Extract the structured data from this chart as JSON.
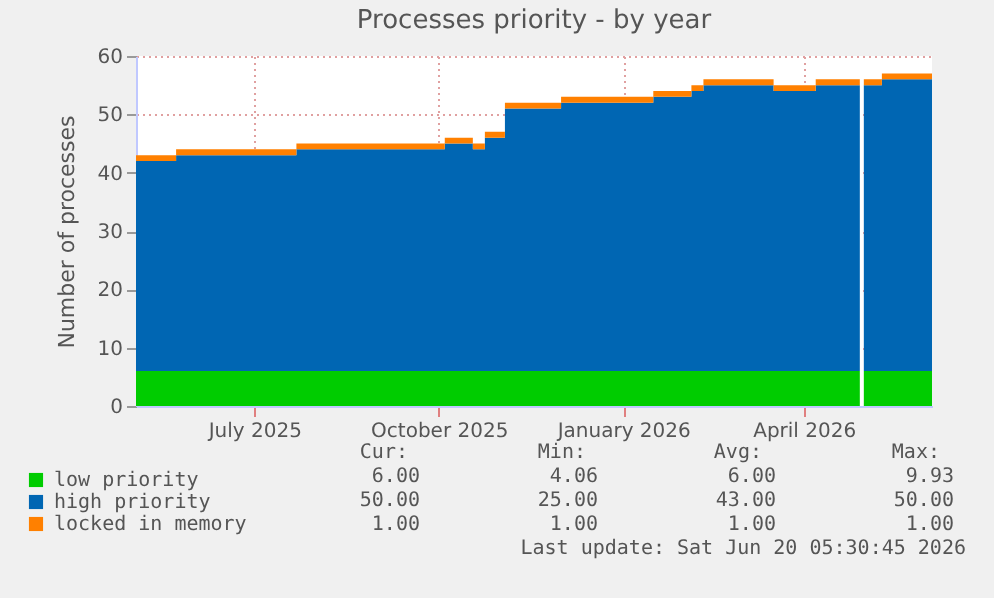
{
  "chart_data": {
    "type": "area",
    "title": "Processes priority - by year",
    "ylabel": "Number of processes",
    "stacked": true,
    "grid": true,
    "legend": "bottom",
    "x": [
      "2025-05-03",
      "2025-05-23",
      "2025-07-22",
      "2025-10-04",
      "2025-10-18",
      "2025-10-24",
      "2025-11-03",
      "2025-12-01",
      "2026-01-16",
      "2026-02-04",
      "2026-02-10",
      "2026-03-17",
      "2026-04-07",
      "2026-04-29",
      "2026-04-30",
      "2026-05-01",
      "2026-05-10",
      "2026-06-04"
    ],
    "series": [
      {
        "name": "low priority",
        "color": "#00cc00",
        "values": [
          6,
          6,
          6,
          6,
          6,
          6,
          6,
          6,
          6,
          6,
          6,
          6,
          6,
          6,
          null,
          6,
          6,
          6
        ]
      },
      {
        "name": "high priority",
        "color": "#0066b3",
        "values": [
          36,
          37,
          38,
          39,
          38,
          40,
          45,
          46,
          47,
          48,
          49,
          48,
          49,
          49,
          null,
          49,
          50,
          50
        ]
      },
      {
        "name": "locked in memory",
        "color": "#ff8000",
        "values": [
          1,
          1,
          1,
          1,
          1,
          1,
          1,
          1,
          1,
          1,
          1,
          1,
          1,
          1,
          null,
          1,
          1,
          1
        ]
      }
    ],
    "xlim": [
      "2025-05-03",
      "2026-06-04"
    ],
    "xticks": [
      {
        "value": "2025-07-01",
        "label": "July 2025"
      },
      {
        "value": "2025-10-01",
        "label": "October 2025"
      },
      {
        "value": "2026-01-01",
        "label": "January 2026"
      },
      {
        "value": "2026-04-01",
        "label": "April 2026"
      }
    ],
    "ylim": [
      0,
      60
    ],
    "yticks": [
      0,
      10,
      20,
      30,
      40,
      50,
      60
    ],
    "annotations": [
      "Cur:",
      "Min:",
      "Avg:",
      "Max:",
      "6.00",
      "4.06",
      "6.00",
      "9.93",
      "50.00",
      "25.00",
      "43.00",
      "50.00",
      "1.00",
      "1.00",
      "1.00",
      "1.00",
      "Last update: Sat Jun 20 05:30:45 2026"
    ]
  }
}
